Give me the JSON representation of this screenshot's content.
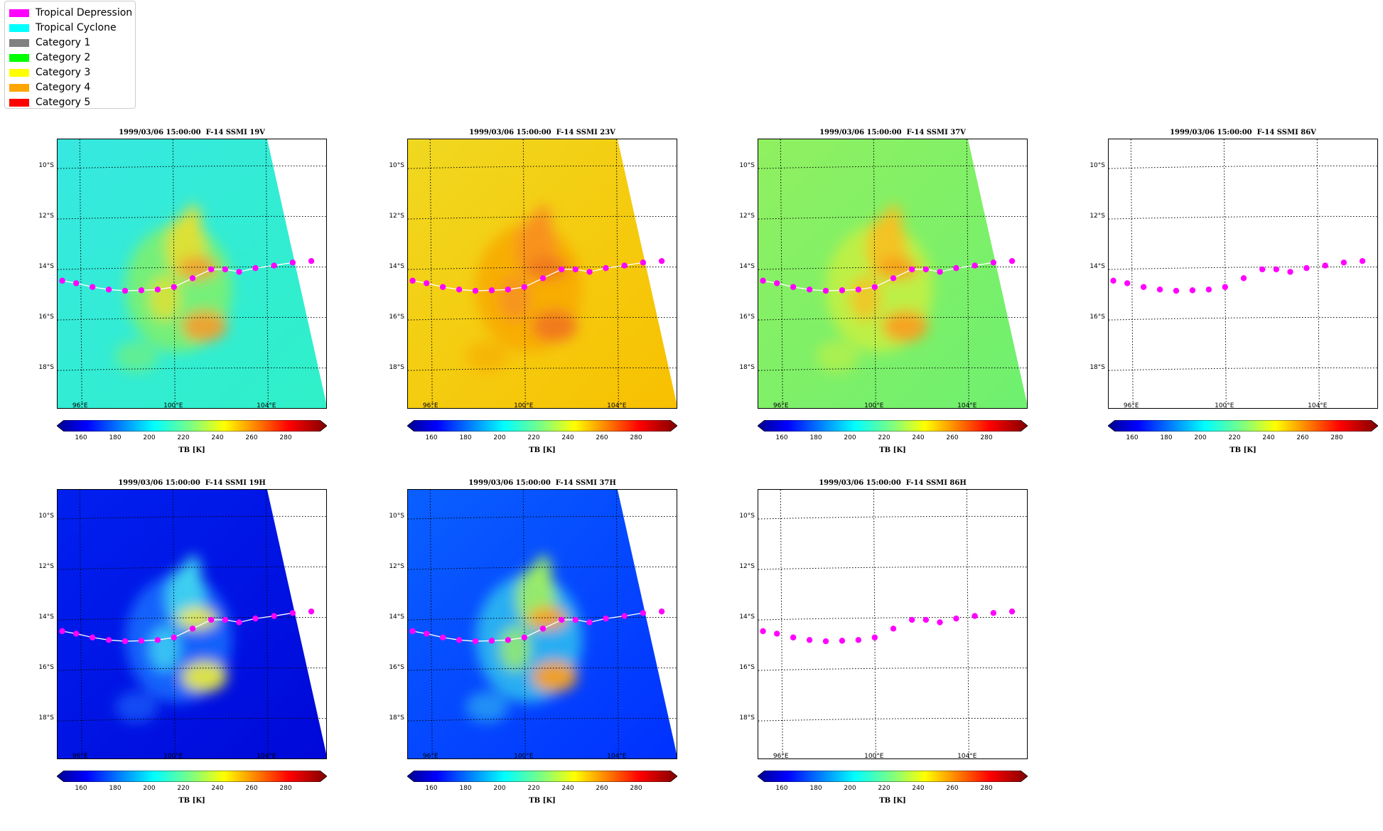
{
  "legend": {
    "items": [
      {
        "label": "Tropical Depression",
        "color": "#ff00ff"
      },
      {
        "label": "Tropical Cyclone",
        "color": "#00ffff"
      },
      {
        "label": "Category 1",
        "color": "#808080"
      },
      {
        "label": "Category 2",
        "color": "#00ff00"
      },
      {
        "label": "Category 3",
        "color": "#ffff00"
      },
      {
        "label": "Category 4",
        "color": "#ffa500"
      },
      {
        "label": "Category 5",
        "color": "#ff0000"
      }
    ]
  },
  "lat_labels": [
    "10°S",
    "12°S",
    "14°S",
    "16°S",
    "18°S"
  ],
  "lon_labels": [
    "96°E",
    "100°E",
    "104°E"
  ],
  "colorbar": {
    "ticks": [
      "160",
      "180",
      "200",
      "220",
      "240",
      "260",
      "280"
    ],
    "label": "TB [K]",
    "range": [
      150,
      300
    ],
    "colormap": "jet"
  },
  "track": {
    "color": "#ff00ff",
    "line_color": "#ffffff",
    "points": [
      [
        95.2,
        -14.5
      ],
      [
        95.8,
        -14.6
      ],
      [
        96.5,
        -14.75
      ],
      [
        97.2,
        -14.85
      ],
      [
        97.9,
        -14.9
      ],
      [
        98.6,
        -14.88
      ],
      [
        99.3,
        -14.85
      ],
      [
        100.0,
        -14.75
      ],
      [
        100.8,
        -14.4
      ],
      [
        101.6,
        -14.05
      ],
      [
        102.2,
        -14.05
      ],
      [
        102.8,
        -14.15
      ],
      [
        103.5,
        -14.0
      ],
      [
        104.3,
        -13.9
      ],
      [
        105.1,
        -13.78
      ],
      [
        105.9,
        -13.72
      ]
    ]
  },
  "panels": [
    {
      "title": "1999/03/06 15:00:00  F-14 SSMI 19V",
      "palette": "19V",
      "has_data": true
    },
    {
      "title": "1999/03/06 15:00:00  F-14 SSMI 23V",
      "palette": "23V",
      "has_data": true
    },
    {
      "title": "1999/03/06 15:00:00  F-14 SSMI 37V",
      "palette": "37V",
      "has_data": true
    },
    {
      "title": "1999/03/06 15:00:00  F-14 SSMI 86V",
      "palette": "none",
      "has_data": false
    },
    {
      "title": "1999/03/06 15:00:00  F-14 SSMI 19H",
      "palette": "19H",
      "has_data": true
    },
    {
      "title": "1999/03/06 15:00:00  F-14 SSMI 37H",
      "palette": "37H",
      "has_data": true
    },
    {
      "title": "1999/03/06 15:00:00  F-14 SSMI 86H",
      "palette": "none",
      "has_data": false
    }
  ],
  "palettes": {
    "19V": {
      "bg": "#2ff0c8",
      "bg2": "#36e8e0",
      "storm": [
        "#80f06a",
        "#e6e030",
        "#f0a030"
      ]
    },
    "23V": {
      "bg": "#f8c000",
      "bg2": "#f0d820",
      "storm": [
        "#f8a800",
        "#f89020",
        "#f07820"
      ]
    },
    "37V": {
      "bg": "#6ef070",
      "bg2": "#90f060",
      "storm": [
        "#c8f040",
        "#f8c020",
        "#f8a020"
      ]
    },
    "19H": {
      "bg": "#0008d8",
      "bg2": "#0020f0",
      "storm": [
        "#1a70ff",
        "#40d8f0",
        "#e6e840"
      ]
    },
    "37H": {
      "bg": "#0030ff",
      "bg2": "#0a60ff",
      "storm": [
        "#30c0f0",
        "#a0f060",
        "#f8a020"
      ]
    }
  }
}
